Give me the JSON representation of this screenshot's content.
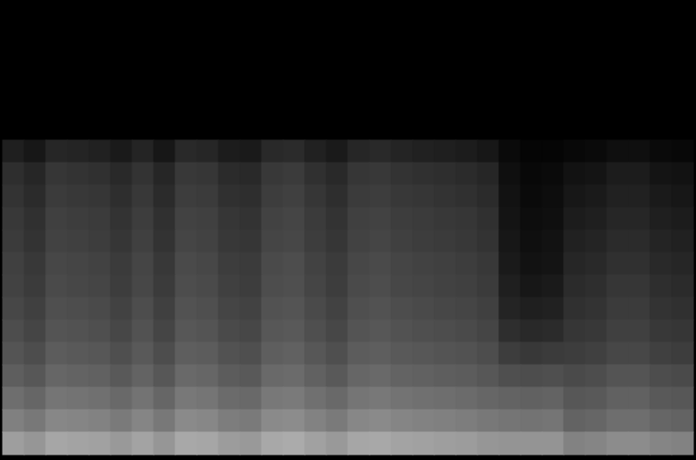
{
  "chart_data": {
    "type": "heatmap",
    "tick_labels": false,
    "zlim": [
      0,
      100
    ],
    "values": [
      [
        0,
        0,
        0,
        0,
        0,
        0,
        0,
        0,
        0,
        0,
        0,
        0,
        0,
        0,
        0,
        0,
        0,
        0,
        0,
        0,
        0,
        0,
        0,
        0,
        0,
        0,
        0,
        0,
        0,
        0,
        0,
        0
      ],
      [
        0,
        0,
        0,
        0,
        0,
        0,
        0,
        0,
        0,
        0,
        0,
        0,
        0,
        0,
        0,
        0,
        0,
        0,
        0,
        0,
        0,
        0,
        0,
        0,
        0,
        0,
        0,
        0,
        0,
        0,
        0,
        0
      ],
      [
        0,
        0,
        0,
        0,
        0,
        0,
        0,
        0,
        0,
        0,
        0,
        0,
        0,
        0,
        0,
        0,
        0,
        0,
        0,
        0,
        0,
        0,
        0,
        0,
        0,
        0,
        0,
        0,
        0,
        0,
        0,
        0
      ],
      [
        0,
        0,
        0,
        0,
        0,
        0,
        0,
        0,
        0,
        0,
        0,
        0,
        0,
        0,
        0,
        0,
        0,
        0,
        0,
        0,
        0,
        0,
        0,
        0,
        0,
        0,
        0,
        0,
        0,
        0,
        0,
        0
      ],
      [
        0,
        0,
        0,
        0,
        0,
        0,
        0,
        0,
        0,
        0,
        0,
        0,
        0,
        0,
        0,
        0,
        0,
        0,
        0,
        0,
        0,
        0,
        0,
        0,
        0,
        0,
        0,
        0,
        0,
        0,
        0,
        0
      ],
      [
        0,
        0,
        0,
        0,
        0,
        0,
        0,
        0,
        0,
        0,
        0,
        0,
        0,
        0,
        0,
        0,
        0,
        0,
        0,
        0,
        0,
        0,
        0,
        0,
        0,
        0,
        0,
        0,
        0,
        0,
        0,
        0
      ],
      [
        12,
        9,
        15,
        14,
        13,
        10,
        14,
        9,
        16,
        15,
        11,
        10,
        16,
        17,
        13,
        10,
        15,
        16,
        14,
        13,
        12,
        11,
        9,
        4,
        2,
        2,
        3,
        4,
        6,
        6,
        4,
        3
      ],
      [
        18,
        15,
        21,
        20,
        19,
        16,
        20,
        15,
        22,
        21,
        17,
        16,
        22,
        23,
        19,
        16,
        21,
        22,
        20,
        19,
        18,
        17,
        15,
        6,
        3,
        4,
        7,
        8,
        11,
        11,
        8,
        7
      ],
      [
        20,
        17,
        23,
        22,
        21,
        18,
        22,
        17,
        24,
        23,
        19,
        18,
        24,
        25,
        21,
        18,
        23,
        24,
        22,
        21,
        20,
        19,
        17,
        7,
        4,
        5,
        9,
        10,
        13,
        13,
        10,
        9
      ],
      [
        22,
        19,
        25,
        24,
        23,
        20,
        24,
        19,
        26,
        25,
        21,
        20,
        26,
        27,
        23,
        20,
        25,
        26,
        24,
        23,
        22,
        21,
        19,
        8,
        5,
        6,
        11,
        12,
        15,
        15,
        12,
        11
      ],
      [
        23,
        20,
        26,
        25,
        24,
        21,
        25,
        20,
        27,
        26,
        22,
        21,
        27,
        28,
        24,
        21,
        26,
        27,
        25,
        24,
        23,
        22,
        20,
        9,
        6,
        7,
        13,
        14,
        17,
        17,
        14,
        13
      ],
      [
        25,
        22,
        28,
        27,
        26,
        23,
        27,
        22,
        29,
        28,
        24,
        23,
        29,
        30,
        26,
        23,
        28,
        29,
        27,
        26,
        25,
        24,
        22,
        10,
        7,
        8,
        15,
        16,
        19,
        19,
        16,
        15
      ],
      [
        26,
        23,
        29,
        28,
        27,
        24,
        28,
        23,
        30,
        29,
        25,
        24,
        30,
        31,
        27,
        24,
        29,
        30,
        28,
        27,
        26,
        25,
        23,
        12,
        9,
        10,
        17,
        18,
        21,
        21,
        18,
        17
      ],
      [
        28,
        25,
        31,
        30,
        29,
        26,
        30,
        25,
        32,
        31,
        27,
        26,
        32,
        33,
        29,
        26,
        31,
        32,
        30,
        29,
        28,
        27,
        25,
        14,
        12,
        13,
        19,
        20,
        23,
        23,
        20,
        19
      ],
      [
        30,
        27,
        33,
        32,
        31,
        28,
        32,
        27,
        34,
        33,
        29,
        28,
        34,
        35,
        31,
        28,
        33,
        34,
        32,
        31,
        30,
        29,
        27,
        18,
        16,
        17,
        21,
        22,
        25,
        25,
        22,
        21
      ],
      [
        33,
        30,
        36,
        35,
        34,
        31,
        35,
        30,
        37,
        36,
        32,
        31,
        37,
        38,
        34,
        31,
        36,
        37,
        35,
        34,
        33,
        32,
        30,
        24,
        22,
        23,
        24,
        25,
        28,
        28,
        25,
        24
      ],
      [
        37,
        34,
        40,
        39,
        38,
        35,
        39,
        34,
        41,
        40,
        36,
        35,
        41,
        42,
        38,
        35,
        40,
        41,
        39,
        38,
        37,
        36,
        34,
        31,
        30,
        31,
        29,
        30,
        33,
        33,
        30,
        29
      ],
      [
        43,
        40,
        46,
        45,
        44,
        41,
        45,
        40,
        47,
        46,
        42,
        41,
        47,
        48,
        44,
        41,
        46,
        47,
        45,
        44,
        43,
        42,
        40,
        39,
        38,
        39,
        34,
        35,
        38,
        38,
        35,
        34
      ],
      [
        50,
        47,
        53,
        52,
        51,
        48,
        52,
        47,
        54,
        53,
        49,
        48,
        54,
        55,
        51,
        48,
        53,
        54,
        52,
        51,
        50,
        49,
        47,
        46,
        45,
        46,
        39,
        40,
        43,
        43,
        40,
        39
      ],
      [
        62,
        59,
        65,
        64,
        63,
        60,
        64,
        59,
        66,
        65,
        61,
        60,
        66,
        67,
        63,
        60,
        65,
        66,
        64,
        63,
        62,
        61,
        59,
        58,
        58,
        58,
        51,
        52,
        55,
        55,
        52,
        51
      ]
    ]
  }
}
